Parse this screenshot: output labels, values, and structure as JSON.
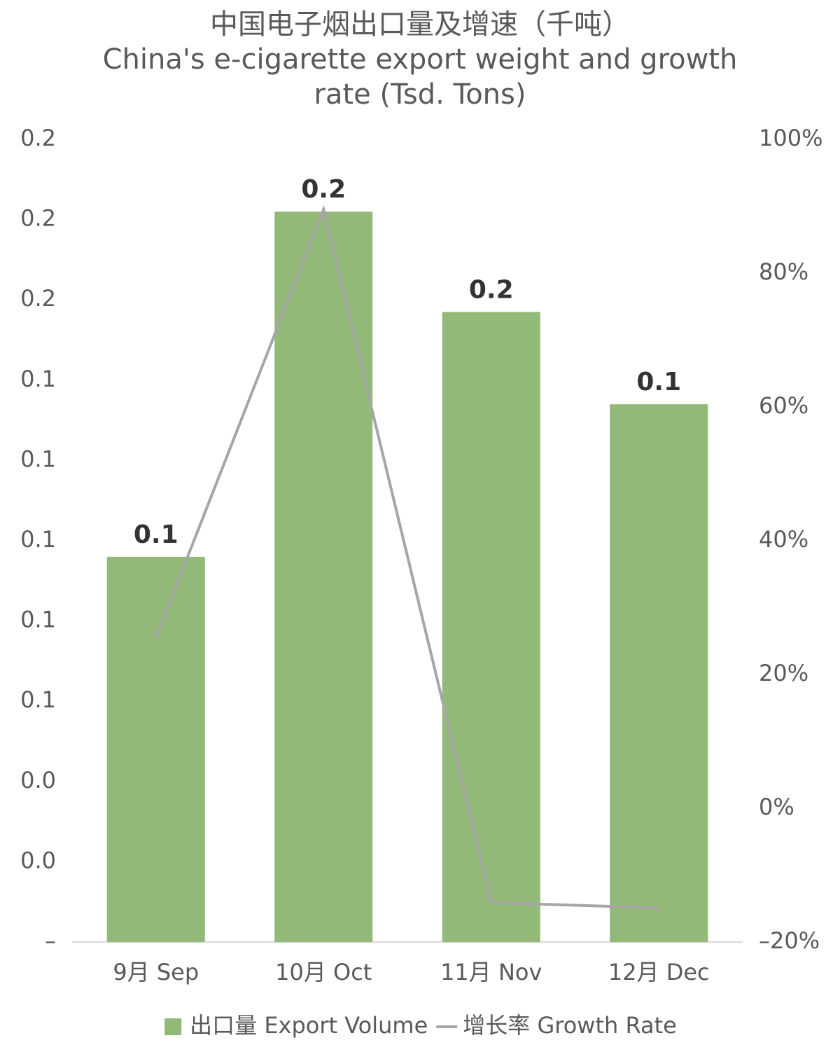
{
  "chart_data": {
    "type": "bar",
    "title": "中国电子烟出口量及增速（千吨）",
    "subtitle": "China's e-cigarette export weight and growth rate (Tsd. Tons)",
    "categories": [
      "9月 Sep",
      "10月 Oct",
      "11月 Nov",
      "12月 Dec"
    ],
    "series": [
      {
        "name": "出口量 Export Volume",
        "type": "bar",
        "color": "#93b978",
        "values": [
          0.096,
          0.182,
          0.157,
          0.134
        ],
        "value_labels": [
          "0.1",
          "0.2",
          "0.2",
          "0.1"
        ]
      },
      {
        "name": "增长率 Growth Rate",
        "type": "line",
        "color": "#a6a6a6",
        "axis": "y2",
        "values": [
          25.5,
          89.5,
          -14.1,
          -14.9
        ]
      }
    ],
    "ylim": [
      0,
      0.2
    ],
    "yticks": [
      {
        "value": 0,
        "label": "–"
      },
      {
        "value": 0.02,
        "label": "0.0"
      },
      {
        "value": 0.04,
        "label": "0.0"
      },
      {
        "value": 0.06,
        "label": "0.1"
      },
      {
        "value": 0.08,
        "label": "0.1"
      },
      0.1,
      {
        "value": 0.12,
        "label": "0.1"
      },
      {
        "value": 0.14,
        "label": "0.1"
      },
      {
        "value": 0.16,
        "label": "0.2"
      },
      {
        "value": 0.18,
        "label": "0.2"
      },
      0.2
    ],
    "y2lim": [
      -20,
      100
    ],
    "y2ticks": [
      {
        "value": -20,
        "label": "–20%"
      },
      {
        "value": 0,
        "label": "0%"
      },
      {
        "value": 20,
        "label": "20%"
      },
      {
        "value": 40,
        "label": "40%"
      },
      {
        "value": 60,
        "label": "60%"
      },
      {
        "value": 80,
        "label": "80%"
      },
      {
        "value": 100,
        "label": "100%"
      }
    ],
    "grid": false,
    "legend": "bottom"
  }
}
